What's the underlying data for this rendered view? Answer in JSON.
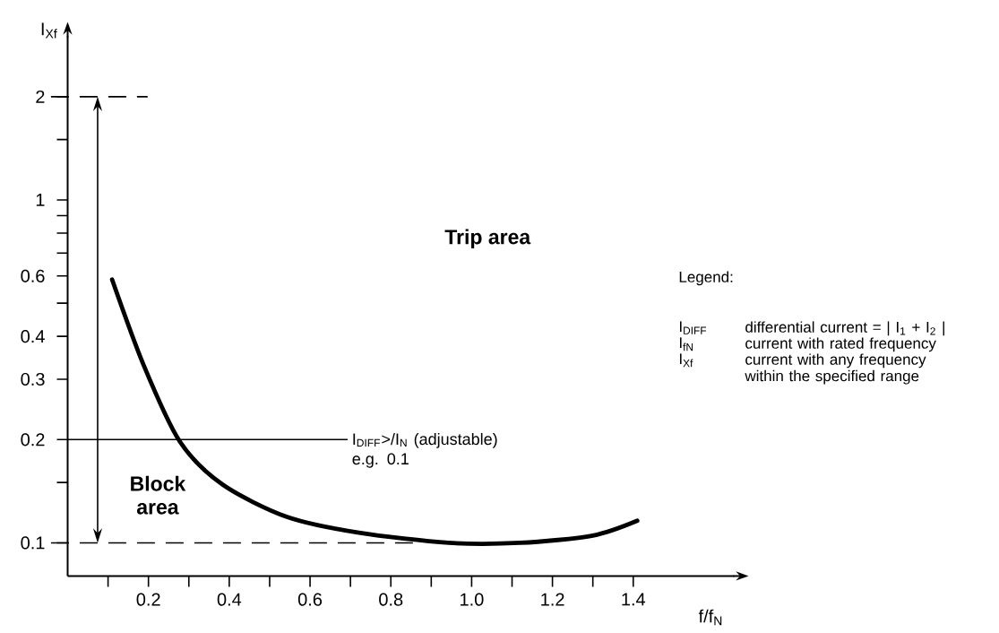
{
  "chart_data": {
    "type": "line",
    "xlabel": "f/f$_{N}$",
    "ylabel": "I$_{Xf}$",
    "log": "y",
    "xlim": [
      0,
      1.65
    ],
    "ylim": [
      0.08,
      3
    ],
    "xticks": [
      {
        "value": 0.1,
        "label": null
      },
      0.2,
      {
        "value": 0.3,
        "label": null
      },
      0.4,
      {
        "value": 0.5,
        "label": null
      },
      0.6,
      {
        "value": 0.7,
        "label": null
      },
      0.8,
      {
        "value": 0.9,
        "label": null
      },
      {
        "value": 1,
        "label": "1.0"
      },
      {
        "value": 1.1,
        "label": null
      },
      1.2,
      {
        "value": 1.3,
        "label": null
      },
      1.4
    ],
    "yticks": [
      0.1,
      {
        "value": 0.15,
        "label": null
      },
      0.2,
      0.3,
      0.4,
      {
        "value": 0.5,
        "label": null
      },
      0.6,
      {
        "value": 0.7,
        "label": null
      },
      {
        "value": 0.8,
        "label": null
      },
      {
        "value": 0.9,
        "label": null
      },
      1,
      {
        "value": 1.5,
        "label": null
      },
      2
    ],
    "series": [
      {
        "color": "#000000",
        "x": [
          0.11,
          0.188,
          0.277,
          0.383,
          0.543,
          0.721,
          0.943,
          1.12,
          1.3,
          1.41
        ],
        "values": [
          0.586,
          0.33,
          0.198,
          0.148,
          0.119,
          0.107,
          0.1,
          0.1,
          0.105,
          0.116
        ]
      }
    ],
    "ref_lines": [
      {
        "axis": "y",
        "value": 2,
        "line_style": "dashed"
      },
      {
        "axis": "y",
        "value": 0.1,
        "line_style": "dashed"
      },
      {
        "axis": "y",
        "value": 0.2,
        "line_style": "solid",
        "label": "I$_{DIFF}$>/I$_{N}$ (adjustable) e.g. 0.1"
      }
    ],
    "annotations": [
      "Trip area",
      "Block area",
      "Legend:",
      "I$_{DIFF}$",
      "differential current = | I$_{1}$ + I$_{2}$ |",
      "I$_{fN}$",
      "current with rated frequency",
      "I$_{Xf}$",
      "current with any frequency within the specified range"
    ]
  }
}
